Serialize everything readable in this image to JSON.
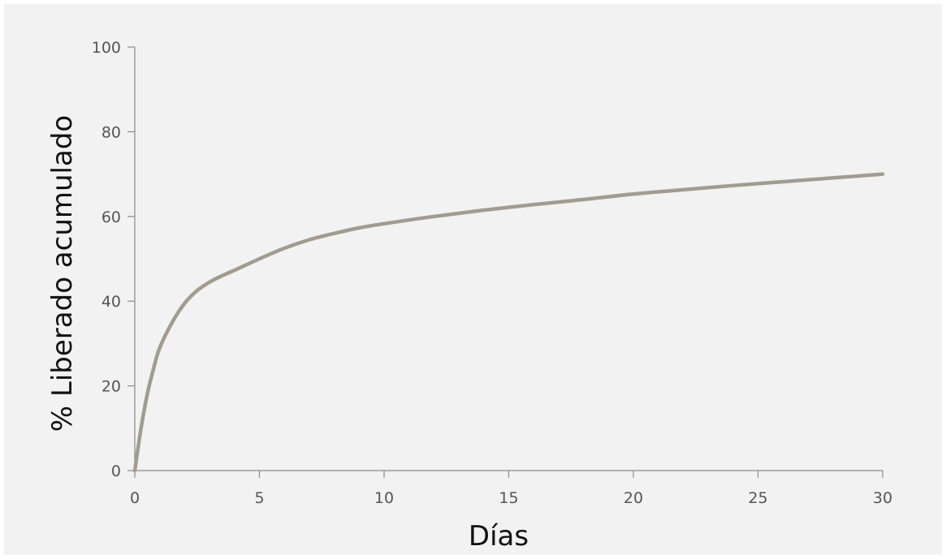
{
  "chart_data": {
    "type": "line",
    "title": "",
    "xlabel": "Días",
    "ylabel": "% Liberado acumulado",
    "xlim": [
      0,
      30
    ],
    "ylim": [
      0,
      100
    ],
    "xticks": [
      0,
      5,
      10,
      15,
      20,
      25,
      30
    ],
    "yticks": [
      0,
      20,
      40,
      60,
      80,
      100
    ],
    "grid": false,
    "colors": {
      "panel_background": "#f2f2f2",
      "line": "#a29b90",
      "axis": "#8a8a8a"
    },
    "series": [
      {
        "x": [
          0,
          0.25,
          0.5,
          0.75,
          1,
          1.5,
          2,
          2.5,
          3,
          3.5,
          4,
          5,
          6,
          7,
          8,
          9,
          10,
          12,
          14,
          16,
          18,
          20,
          22,
          24,
          26,
          28,
          30
        ],
        "y": [
          0,
          10,
          18,
          24,
          29,
          35,
          39.5,
          42.5,
          44.5,
          46,
          47.3,
          50,
          52.5,
          54.5,
          56,
          57.3,
          58.3,
          60,
          61.5,
          62.8,
          64,
          65.3,
          66.3,
          67.3,
          68.2,
          69.1,
          70
        ]
      }
    ]
  }
}
